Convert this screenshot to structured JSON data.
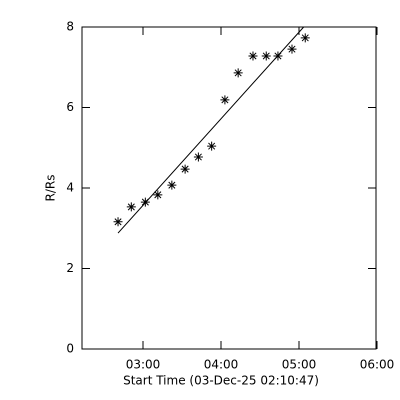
{
  "chart_data": {
    "type": "scatter",
    "xlabel": "Start Time (03-Dec-25 02:10:47)",
    "ylabel": "R/Rs",
    "xlim": [
      2.218,
      5.987
    ],
    "ylim": [
      0,
      8
    ],
    "xticks": [
      {
        "value": 3,
        "label": "03:00"
      },
      {
        "value": 4,
        "label": "04:00"
      },
      {
        "value": 5,
        "label": "05:00"
      },
      {
        "value": 6,
        "label": "06:00"
      }
    ],
    "yticks": [
      0,
      2,
      4,
      6,
      8
    ],
    "series": [
      {
        "color": "#000000",
        "marker": "star",
        "x": [
          2.68,
          2.85,
          3.03,
          3.19,
          3.37,
          3.54,
          3.71,
          3.88,
          4.05,
          4.22,
          4.41,
          4.58,
          4.73,
          4.91,
          5.08
        ],
        "values": [
          3.16,
          3.53,
          3.65,
          3.83,
          4.07,
          4.47,
          4.77,
          5.04,
          6.19,
          6.86,
          7.28,
          7.28,
          7.28,
          7.45,
          7.73
        ]
      },
      {
        "color": "#000000",
        "marker": "line",
        "x": [
          2.68,
          5.06
        ],
        "values": [
          2.88,
          8.0
        ]
      }
    ]
  }
}
